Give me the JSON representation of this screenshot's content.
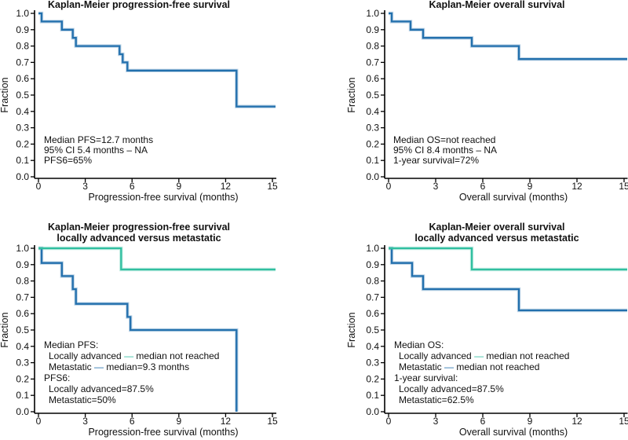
{
  "figure": {
    "background": "#ffffff"
  },
  "colors": {
    "blue": "#2370ad",
    "teal": "#31bfa0",
    "text": "#111111",
    "axis": "#000000"
  },
  "chart_data": [
    {
      "name": "km-progression-free-survival",
      "type": "line",
      "step": true,
      "title_lines": [
        "Kaplan-Meier progression-free survival"
      ],
      "xlabel": "Progression-free survival (months)",
      "ylabel": "Fraction",
      "xticks": [
        0,
        3,
        6,
        9,
        12,
        15
      ],
      "ytick_labels": [
        "0.0",
        "0.1",
        "0.2",
        "0.3",
        "0.4",
        "0.5",
        "0.6",
        "0.7",
        "0.8",
        "0.9",
        "1.0"
      ],
      "xlim": [
        0,
        15.25
      ],
      "ylim": [
        0,
        1.0
      ],
      "grid": false,
      "legend": "none",
      "series": [
        {
          "color": "blue",
          "points": [
            [
              0,
              1
            ],
            [
              0.2,
              1
            ],
            [
              0.2,
              0.95
            ],
            [
              1.5,
              0.95
            ],
            [
              1.5,
              0.9
            ],
            [
              2.2,
              0.9
            ],
            [
              2.2,
              0.85
            ],
            [
              2.4,
              0.85
            ],
            [
              2.4,
              0.8
            ],
            [
              5.2,
              0.8
            ],
            [
              5.2,
              0.75
            ],
            [
              5.4,
              0.75
            ],
            [
              5.4,
              0.7
            ],
            [
              5.7,
              0.7
            ],
            [
              5.7,
              0.65
            ],
            [
              12.7,
              0.65
            ],
            [
              12.7,
              0.43
            ],
            [
              15.2,
              0.43
            ]
          ]
        }
      ],
      "annotation": [
        {
          "segments": [
            {
              "text": "Median PFS=12.7 months"
            }
          ]
        },
        {
          "segments": [
            {
              "text": "95% CI 5.4 months – NA"
            }
          ]
        },
        {
          "segments": [
            {
              "text": "PFS6=65%"
            }
          ]
        }
      ]
    },
    {
      "name": "km-overall-survival",
      "type": "line",
      "step": true,
      "title_lines": [
        "Kaplan-Meier overall survival"
      ],
      "xlabel": "Overall survival (months)",
      "ylabel": "Fraction",
      "xticks": [
        0,
        3,
        6,
        9,
        12,
        15
      ],
      "ytick_labels": [
        "0.0",
        "0.1",
        "0.2",
        "0.3",
        "0.4",
        "0.5",
        "0.6",
        "0.7",
        "0.8",
        "0.9",
        "1.0"
      ],
      "xlim": [
        0,
        15.25
      ],
      "ylim": [
        0,
        1.0
      ],
      "grid": false,
      "legend": "none",
      "series": [
        {
          "color": "blue",
          "points": [
            [
              0,
              1
            ],
            [
              0.2,
              1
            ],
            [
              0.2,
              0.95
            ],
            [
              1.4,
              0.95
            ],
            [
              1.4,
              0.9
            ],
            [
              2.2,
              0.9
            ],
            [
              2.2,
              0.85
            ],
            [
              5.3,
              0.85
            ],
            [
              5.3,
              0.8
            ],
            [
              8.3,
              0.8
            ],
            [
              8.3,
              0.72
            ],
            [
              15.2,
              0.72
            ]
          ]
        }
      ],
      "annotation": [
        {
          "segments": [
            {
              "text": "Median OS=not reached"
            }
          ]
        },
        {
          "segments": [
            {
              "text": "95% CI 8.4 months – NA"
            }
          ]
        },
        {
          "segments": [
            {
              "text": "1-year survival=72%"
            }
          ]
        }
      ]
    },
    {
      "name": "km-pfs-locally-advanced-vs-metastatic",
      "type": "line",
      "step": true,
      "title_lines": [
        "Kaplan-Meier progression-free survival",
        "locally advanced versus metastatic"
      ],
      "xlabel": "Progression-free survival (months)",
      "ylabel": "Fraction",
      "xticks": [
        0,
        3,
        6,
        9,
        12,
        15
      ],
      "ytick_labels": [
        "0.0",
        "0.1",
        "0.2",
        "0.3",
        "0.4",
        "0.5",
        "0.6",
        "0.7",
        "0.8",
        "0.9",
        "1.0"
      ],
      "xlim": [
        0,
        15.25
      ],
      "ylim": [
        0,
        1.0
      ],
      "grid": false,
      "legend": "in-annotation",
      "series": [
        {
          "name": "Metastatic",
          "color": "blue",
          "points": [
            [
              0,
              1
            ],
            [
              0.2,
              1
            ],
            [
              0.2,
              0.91
            ],
            [
              1.5,
              0.91
            ],
            [
              1.5,
              0.83
            ],
            [
              2.2,
              0.83
            ],
            [
              2.2,
              0.75
            ],
            [
              2.4,
              0.75
            ],
            [
              2.4,
              0.66
            ],
            [
              5.7,
              0.66
            ],
            [
              5.7,
              0.58
            ],
            [
              5.9,
              0.58
            ],
            [
              5.9,
              0.5
            ],
            [
              12.7,
              0.5
            ],
            [
              12.7,
              0
            ]
          ]
        },
        {
          "name": "Locally advanced",
          "color": "teal",
          "points": [
            [
              0,
              1
            ],
            [
              5.3,
              1
            ],
            [
              5.3,
              0.87
            ],
            [
              15.2,
              0.87
            ]
          ]
        }
      ],
      "annotation": [
        {
          "segments": [
            {
              "text": "Median PFS:"
            }
          ]
        },
        {
          "indent": true,
          "segments": [
            {
              "text": "Locally advanced "
            },
            {
              "text": "—",
              "color": "teal"
            },
            {
              "text": " median not reached"
            }
          ]
        },
        {
          "indent": true,
          "segments": [
            {
              "text": "Metastatic "
            },
            {
              "text": "—",
              "color": "blue"
            },
            {
              "text": " median=9.3 months"
            }
          ]
        },
        {
          "segments": [
            {
              "text": "PFS6:"
            }
          ]
        },
        {
          "indent": true,
          "segments": [
            {
              "text": "Locally advanced=87.5%"
            }
          ]
        },
        {
          "indent": true,
          "segments": [
            {
              "text": "Metastatic=50%"
            }
          ]
        }
      ]
    },
    {
      "name": "km-os-locally-advanced-vs-metastatic",
      "type": "line",
      "step": true,
      "title_lines": [
        "Kaplan-Meier overall survival",
        "locally advanced versus metastatic"
      ],
      "xlabel": "Overall survival (months)",
      "ylabel": "Fraction",
      "xticks": [
        0,
        3,
        6,
        9,
        12,
        15
      ],
      "ytick_labels": [
        "0.0",
        "0.1",
        "0.2",
        "0.3",
        "0.4",
        "0.5",
        "0.6",
        "0.7",
        "0.8",
        "0.9",
        "1.0"
      ],
      "xlim": [
        0,
        15.25
      ],
      "ylim": [
        0,
        1.0
      ],
      "grid": false,
      "legend": "in-annotation",
      "series": [
        {
          "name": "Metastatic",
          "color": "blue",
          "points": [
            [
              0,
              1
            ],
            [
              0.2,
              1
            ],
            [
              0.2,
              0.91
            ],
            [
              1.5,
              0.91
            ],
            [
              1.5,
              0.83
            ],
            [
              2.2,
              0.83
            ],
            [
              2.2,
              0.75
            ],
            [
              8.3,
              0.75
            ],
            [
              8.3,
              0.62
            ],
            [
              15.2,
              0.62
            ]
          ]
        },
        {
          "name": "Locally advanced",
          "color": "teal",
          "points": [
            [
              0,
              1
            ],
            [
              5.3,
              1
            ],
            [
              5.3,
              0.87
            ],
            [
              15.2,
              0.87
            ]
          ]
        }
      ],
      "annotation": [
        {
          "segments": [
            {
              "text": "Median OS:"
            }
          ]
        },
        {
          "indent": true,
          "segments": [
            {
              "text": "Locally advanced "
            },
            {
              "text": "—",
              "color": "teal"
            },
            {
              "text": " median not reached"
            }
          ]
        },
        {
          "indent": true,
          "segments": [
            {
              "text": "Metastatic "
            },
            {
              "text": "—",
              "color": "blue"
            },
            {
              "text": " median not reached"
            }
          ]
        },
        {
          "segments": [
            {
              "text": "1-year survival:"
            }
          ]
        },
        {
          "indent": true,
          "segments": [
            {
              "text": "Locally advanced=87.5%"
            }
          ]
        },
        {
          "indent": true,
          "segments": [
            {
              "text": "Metastatic=62.5%"
            }
          ]
        }
      ]
    }
  ]
}
